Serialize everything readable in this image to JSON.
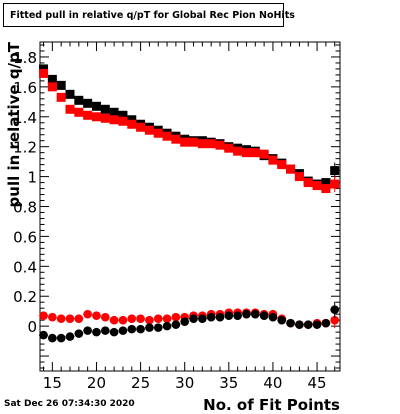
{
  "chart_data": {
    "type": "scatter",
    "title": "Fitted pull in relative q/pT for Global Rec Pion NoHits",
    "xlabel": "No. of Fit Points",
    "ylabel": "pull in relative q/pT",
    "xlim": [
      13.6,
      47.6
    ],
    "ylim": [
      -0.3,
      1.9
    ],
    "xticks": [
      "15",
      "20",
      "25",
      "30",
      "35",
      "40",
      "45"
    ],
    "yticks": [
      "0",
      "0.2",
      "0.4",
      "0.6",
      "0.8",
      "1",
      "1.2",
      "1.4",
      "1.6",
      "1.8"
    ],
    "x": [
      14,
      15,
      16,
      17,
      18,
      19,
      20,
      21,
      22,
      23,
      24,
      25,
      26,
      27,
      28,
      29,
      30,
      31,
      32,
      33,
      34,
      35,
      36,
      37,
      38,
      39,
      40,
      41,
      42,
      43,
      44,
      45,
      46,
      47
    ],
    "series": [
      {
        "color": "#000000",
        "marker": "square",
        "values": [
          1.72,
          1.65,
          1.61,
          1.55,
          1.51,
          1.49,
          1.47,
          1.45,
          1.43,
          1.41,
          1.38,
          1.35,
          1.33,
          1.31,
          1.29,
          1.27,
          1.25,
          1.24,
          1.24,
          1.23,
          1.22,
          1.2,
          1.19,
          1.18,
          1.17,
          1.14,
          1.12,
          1.09,
          1.05,
          1.02,
          0.97,
          0.95,
          0.96,
          1.04
        ]
      },
      {
        "color": "#ff0000",
        "marker": "square",
        "values": [
          1.69,
          1.6,
          1.53,
          1.45,
          1.43,
          1.41,
          1.4,
          1.39,
          1.38,
          1.37,
          1.35,
          1.33,
          1.31,
          1.29,
          1.27,
          1.25,
          1.23,
          1.23,
          1.22,
          1.22,
          1.21,
          1.19,
          1.17,
          1.16,
          1.16,
          1.15,
          1.11,
          1.08,
          1.05,
          1.0,
          0.96,
          0.94,
          0.92,
          0.95
        ]
      },
      {
        "color": "#ff0000",
        "marker": "circle",
        "values": [
          0.07,
          0.06,
          0.05,
          0.05,
          0.05,
          0.08,
          0.07,
          0.06,
          0.04,
          0.04,
          0.05,
          0.05,
          0.04,
          0.05,
          0.05,
          0.06,
          0.06,
          0.07,
          0.07,
          0.08,
          0.08,
          0.09,
          0.09,
          0.09,
          0.09,
          0.08,
          0.08,
          0.05,
          0.02,
          0.01,
          0.01,
          0.02,
          0.02,
          0.04
        ]
      },
      {
        "color": "#000000",
        "marker": "circle",
        "values": [
          -0.06,
          -0.08,
          -0.08,
          -0.07,
          -0.05,
          -0.03,
          -0.04,
          -0.03,
          -0.04,
          -0.03,
          -0.02,
          -0.02,
          -0.01,
          -0.01,
          0.0,
          0.01,
          0.03,
          0.05,
          0.05,
          0.06,
          0.06,
          0.07,
          0.07,
          0.08,
          0.08,
          0.07,
          0.06,
          0.04,
          0.02,
          0.01,
          0.01,
          0.01,
          0.02,
          0.11
        ]
      }
    ]
  },
  "footer": {
    "date": "Sat Dec 26 07:34:30 2020"
  }
}
